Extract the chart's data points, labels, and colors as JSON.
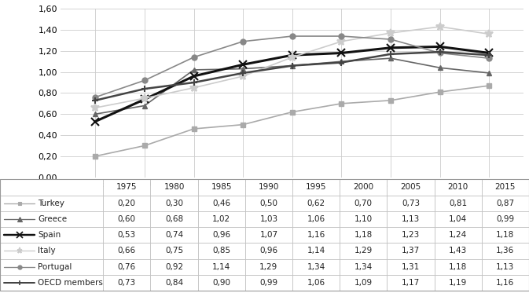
{
  "years": [
    1975,
    1980,
    1985,
    1990,
    1995,
    2000,
    2005,
    2010,
    2015
  ],
  "series_order": [
    "Turkey",
    "Greece",
    "Spain",
    "Italy",
    "Portugal",
    "OECD members"
  ],
  "series": {
    "Turkey": [
      0.2,
      0.3,
      0.46,
      0.5,
      0.62,
      0.7,
      0.73,
      0.81,
      0.87
    ],
    "Greece": [
      0.6,
      0.68,
      1.02,
      1.03,
      1.06,
      1.1,
      1.13,
      1.04,
      0.99
    ],
    "Spain": [
      0.53,
      0.74,
      0.96,
      1.07,
      1.16,
      1.18,
      1.23,
      1.24,
      1.18
    ],
    "Italy": [
      0.66,
      0.75,
      0.85,
      0.96,
      1.14,
      1.29,
      1.37,
      1.43,
      1.36
    ],
    "Portugal": [
      0.76,
      0.92,
      1.14,
      1.29,
      1.34,
      1.34,
      1.31,
      1.18,
      1.13
    ],
    "OECD members": [
      0.73,
      0.84,
      0.9,
      0.99,
      1.06,
      1.09,
      1.17,
      1.19,
      1.16
    ]
  },
  "colors": {
    "Turkey": "#aaaaaa",
    "Greece": "#666666",
    "Spain": "#111111",
    "Italy": "#cccccc",
    "Portugal": "#888888",
    "OECD members": "#444444"
  },
  "markers": {
    "Turkey": "s",
    "Greece": "^",
    "Spain": "x",
    "Italy": "*",
    "Portugal": "o",
    "OECD members": "+"
  },
  "linewidths": {
    "Turkey": 1.2,
    "Greece": 1.2,
    "Spain": 2.2,
    "Italy": 1.2,
    "Portugal": 1.2,
    "OECD members": 1.8
  },
  "markersizes": {
    "Turkey": 4,
    "Greece": 5,
    "Spain": 7,
    "Italy": 7,
    "Portugal": 5,
    "OECD members": 6
  },
  "ylim": [
    0.0,
    1.6
  ],
  "yticks": [
    0.0,
    0.2,
    0.4,
    0.6,
    0.8,
    1.0,
    1.2,
    1.4,
    1.6
  ],
  "table_data": {
    "Turkey": [
      "0,20",
      "0,30",
      "0,46",
      "0,50",
      "0,62",
      "0,70",
      "0,73",
      "0,81",
      "0,87"
    ],
    "Greece": [
      "0,60",
      "0,68",
      "1,02",
      "1,03",
      "1,06",
      "1,10",
      "1,13",
      "1,04",
      "0,99"
    ],
    "Spain": [
      "0,53",
      "0,74",
      "0,96",
      "1,07",
      "1,16",
      "1,18",
      "1,23",
      "1,24",
      "1,18"
    ],
    "Italy": [
      "0,66",
      "0,75",
      "0,85",
      "0,96",
      "1,14",
      "1,29",
      "1,37",
      "1,43",
      "1,36"
    ],
    "Portugal": [
      "0,76",
      "0,92",
      "1,14",
      "1,29",
      "1,34",
      "1,34",
      "1,31",
      "1,18",
      "1,13"
    ],
    "OECD members": [
      "0,73",
      "0,84",
      "0,90",
      "0,99",
      "1,06",
      "1,09",
      "1,17",
      "1,19",
      "1,16"
    ]
  },
  "bg_color": "#ffffff",
  "grid_color": "#cccccc",
  "chart_fontsize": 8,
  "table_fontsize": 7.5
}
